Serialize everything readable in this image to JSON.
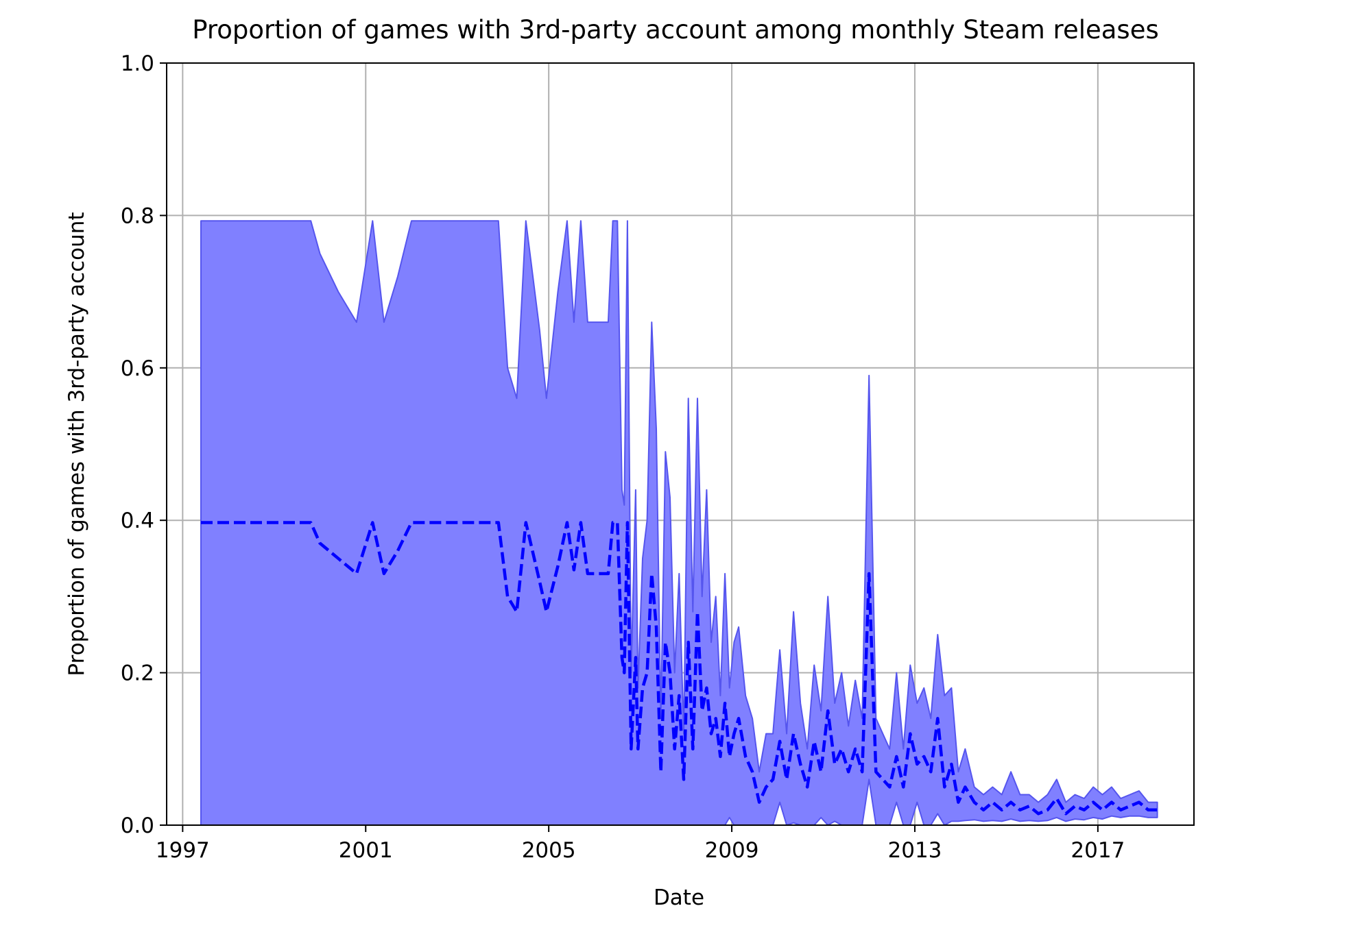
{
  "chart_data": {
    "type": "line",
    "title": "Proportion of games with 3rd-party account among monthly Steam releases",
    "xlabel": "Date",
    "ylabel": "Proportion of games with 3rd-party account",
    "xlim": [
      1996.65,
      2019.1
    ],
    "ylim": [
      0.0,
      1.0
    ],
    "xticks": [
      1997,
      2001,
      2005,
      2009,
      2013,
      2017
    ],
    "yticks": [
      0.0,
      0.2,
      0.4,
      0.6,
      0.8,
      1.0
    ],
    "ytick_labels": [
      "0.0",
      "0.2",
      "0.4",
      "0.6",
      "0.8",
      "1.0"
    ],
    "grid": true,
    "colors": {
      "fill": "#8080ff",
      "fill_edge": "#5555ee",
      "line": "#0000ff"
    },
    "series": [
      {
        "style": "dashed",
        "x": [
          1997.4,
          1999.8,
          2000.0,
          2000.4,
          2000.8,
          2001.15,
          2001.4,
          2001.7,
          2002.0,
          2003.9,
          2004.1,
          2004.3,
          2004.5,
          2004.8,
          2004.95,
          2005.2,
          2005.4,
          2005.55,
          2005.7,
          2005.85,
          2006.3,
          2006.4,
          2006.5,
          2006.6,
          2006.65,
          2006.72,
          2006.8,
          2006.9,
          2006.95,
          2007.05,
          2007.15,
          2007.25,
          2007.35,
          2007.45,
          2007.55,
          2007.65,
          2007.75,
          2007.85,
          2007.95,
          2008.05,
          2008.15,
          2008.25,
          2008.35,
          2008.45,
          2008.55,
          2008.65,
          2008.75,
          2008.85,
          2008.95,
          2009.05,
          2009.15,
          2009.3,
          2009.45,
          2009.6,
          2009.75,
          2009.9,
          2010.05,
          2010.2,
          2010.35,
          2010.5,
          2010.65,
          2010.8,
          2010.95,
          2011.1,
          2011.25,
          2011.4,
          2011.55,
          2011.7,
          2011.85,
          2012.0,
          2012.15,
          2012.3,
          2012.45,
          2012.6,
          2012.75,
          2012.9,
          2013.05,
          2013.2,
          2013.35,
          2013.5,
          2013.65,
          2013.8,
          2013.95,
          2014.1,
          2014.3,
          2014.5,
          2014.7,
          2014.9,
          2015.1,
          2015.3,
          2015.5,
          2015.7,
          2015.9,
          2016.1,
          2016.3,
          2016.5,
          2016.7,
          2016.9,
          2017.1,
          2017.3,
          2017.5,
          2017.7,
          2017.9,
          2018.1,
          2018.3
        ],
        "y": [
          0.397,
          0.397,
          0.37,
          0.35,
          0.33,
          0.397,
          0.33,
          0.36,
          0.397,
          0.397,
          0.3,
          0.28,
          0.397,
          0.32,
          0.28,
          0.34,
          0.397,
          0.335,
          0.397,
          0.33,
          0.33,
          0.397,
          0.397,
          0.22,
          0.2,
          0.397,
          0.1,
          0.22,
          0.1,
          0.18,
          0.2,
          0.33,
          0.26,
          0.07,
          0.24,
          0.2,
          0.1,
          0.17,
          0.06,
          0.24,
          0.1,
          0.28,
          0.15,
          0.18,
          0.12,
          0.14,
          0.09,
          0.16,
          0.09,
          0.12,
          0.14,
          0.09,
          0.07,
          0.03,
          0.05,
          0.06,
          0.11,
          0.06,
          0.12,
          0.08,
          0.05,
          0.11,
          0.07,
          0.15,
          0.08,
          0.1,
          0.07,
          0.1,
          0.07,
          0.33,
          0.07,
          0.06,
          0.05,
          0.09,
          0.05,
          0.12,
          0.08,
          0.09,
          0.07,
          0.14,
          0.05,
          0.08,
          0.03,
          0.05,
          0.03,
          0.02,
          0.03,
          0.02,
          0.03,
          0.02,
          0.025,
          0.015,
          0.02,
          0.035,
          0.015,
          0.025,
          0.02,
          0.03,
          0.02,
          0.03,
          0.02,
          0.025,
          0.03,
          0.02,
          0.02
        ]
      }
    ],
    "band": {
      "upper": [
        0.793,
        0.793,
        0.75,
        0.7,
        0.66,
        0.793,
        0.66,
        0.72,
        0.793,
        0.793,
        0.6,
        0.56,
        0.793,
        0.65,
        0.56,
        0.7,
        0.793,
        0.66,
        0.793,
        0.66,
        0.66,
        0.793,
        0.793,
        0.44,
        0.42,
        0.793,
        0.2,
        0.44,
        0.18,
        0.35,
        0.4,
        0.66,
        0.52,
        0.14,
        0.49,
        0.43,
        0.2,
        0.33,
        0.12,
        0.56,
        0.28,
        0.56,
        0.3,
        0.44,
        0.24,
        0.3,
        0.17,
        0.33,
        0.18,
        0.24,
        0.26,
        0.17,
        0.14,
        0.07,
        0.12,
        0.12,
        0.23,
        0.12,
        0.28,
        0.16,
        0.1,
        0.21,
        0.15,
        0.3,
        0.16,
        0.2,
        0.13,
        0.19,
        0.14,
        0.59,
        0.14,
        0.12,
        0.1,
        0.2,
        0.1,
        0.21,
        0.16,
        0.18,
        0.14,
        0.25,
        0.17,
        0.18,
        0.07,
        0.1,
        0.05,
        0.04,
        0.05,
        0.04,
        0.07,
        0.04,
        0.04,
        0.03,
        0.04,
        0.06,
        0.03,
        0.04,
        0.035,
        0.05,
        0.04,
        0.05,
        0.035,
        0.04,
        0.045,
        0.03,
        0.03
      ],
      "lower": [
        0,
        0,
        0,
        0,
        0,
        0,
        0,
        0,
        0,
        0,
        0,
        0,
        0,
        0,
        0,
        0,
        0,
        0,
        0,
        0,
        0,
        0,
        0,
        0,
        0,
        0,
        0,
        0,
        0,
        0,
        0,
        0,
        0,
        0,
        0,
        0,
        0,
        0,
        0,
        0,
        0,
        0,
        0,
        0,
        0,
        0,
        0,
        0,
        0.01,
        0,
        0,
        0,
        0,
        0,
        0,
        0,
        0.03,
        0,
        0.003,
        0,
        0,
        0,
        0.01,
        0,
        0.005,
        0,
        0,
        0,
        0,
        0.06,
        0,
        0,
        0,
        0.03,
        0,
        0,
        0.03,
        0,
        0,
        0.015,
        0,
        0.005,
        0.005,
        0.006,
        0.007,
        0.005,
        0.006,
        0.005,
        0.008,
        0.005,
        0.006,
        0.005,
        0.006,
        0.01,
        0.005,
        0.008,
        0.007,
        0.01,
        0.008,
        0.012,
        0.01,
        0.012,
        0.012,
        0.01,
        0.01
      ]
    }
  }
}
